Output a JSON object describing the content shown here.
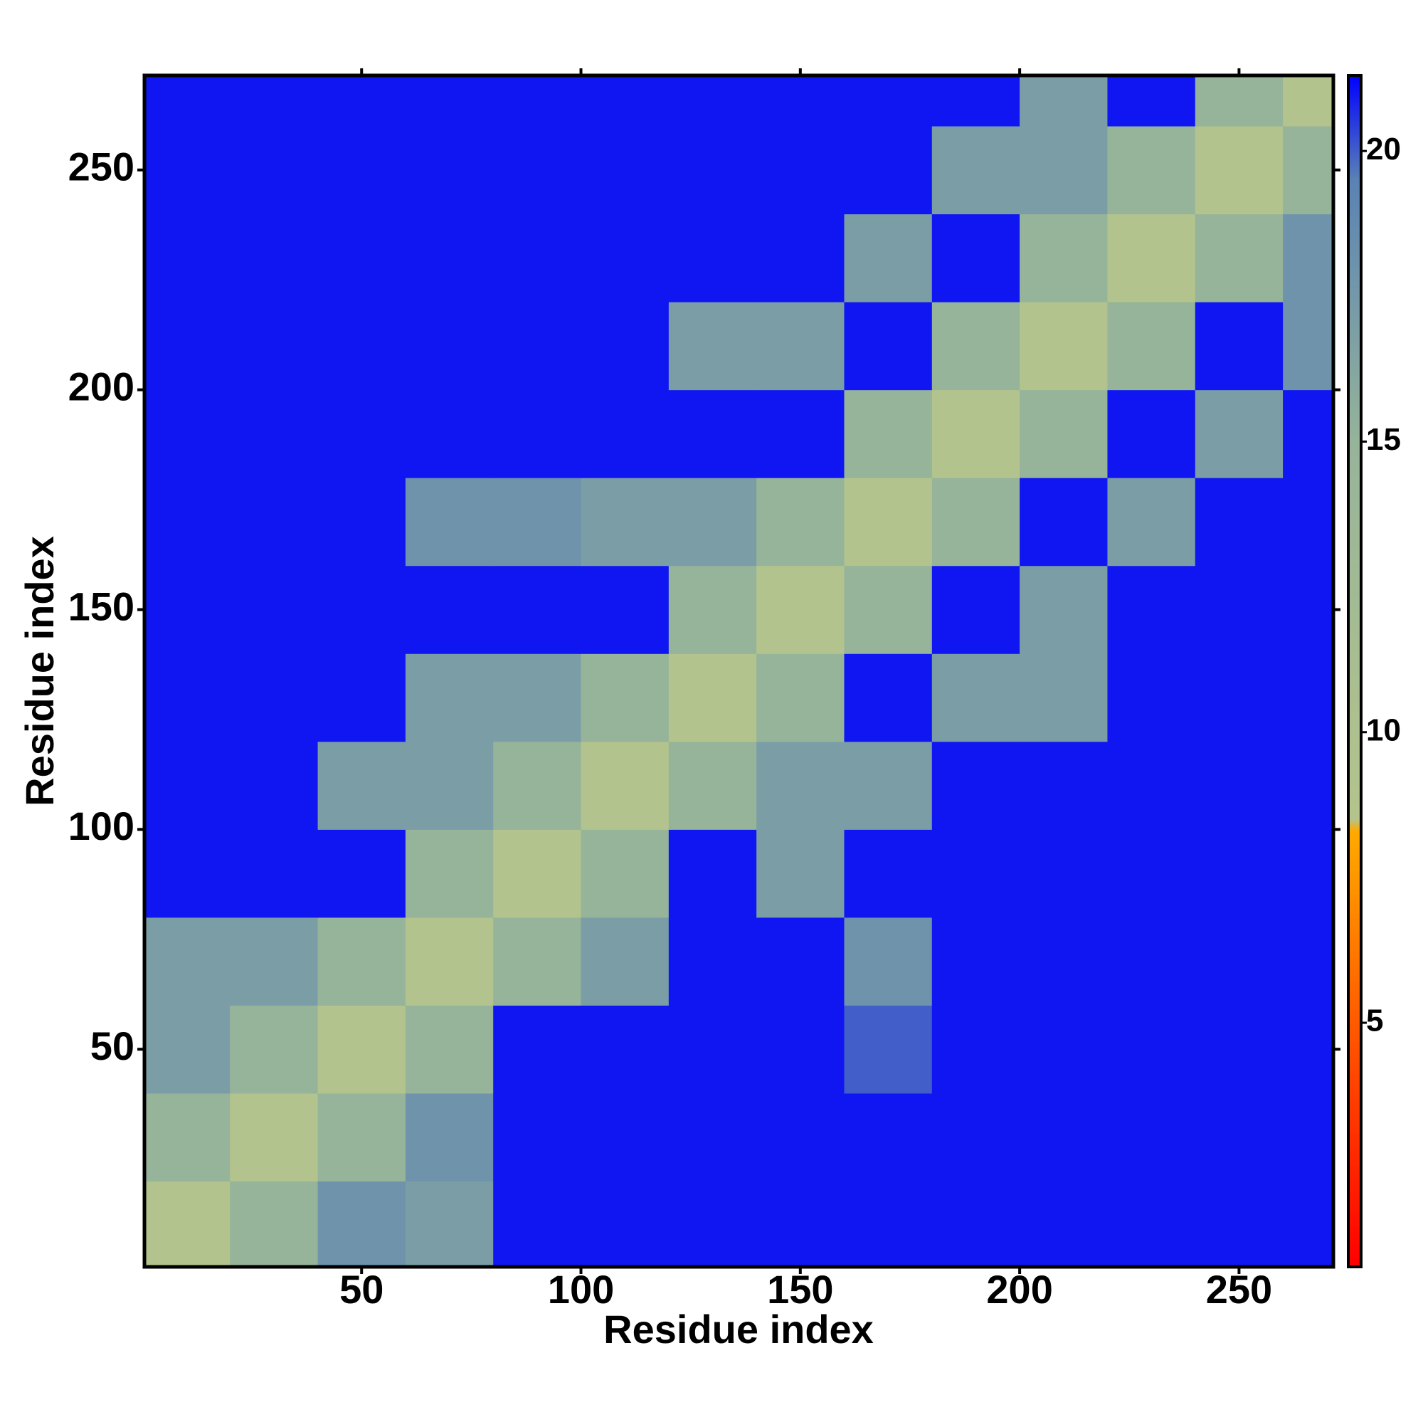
{
  "chart_data": {
    "type": "heatmap",
    "x_label": "Residue index",
    "y_label": "Residue index",
    "x": [
      10,
      30,
      50,
      70,
      90,
      110,
      130,
      150,
      170,
      190,
      210,
      230,
      250,
      270
    ],
    "y": [
      10,
      30,
      50,
      70,
      90,
      110,
      130,
      150,
      170,
      190,
      210,
      230,
      250,
      270
    ],
    "z": [
      [
        9,
        15,
        18,
        17,
        21,
        21,
        21,
        21,
        21,
        21,
        21,
        21,
        21,
        21
      ],
      [
        15,
        9,
        15,
        18,
        21,
        21,
        21,
        21,
        21,
        21,
        21,
        21,
        21,
        21
      ],
      [
        17,
        15,
        9,
        15,
        21,
        21,
        21,
        21,
        20,
        21,
        21,
        21,
        21,
        21
      ],
      [
        17,
        17,
        15,
        9,
        15,
        17,
        21,
        21,
        18,
        21,
        21,
        21,
        21,
        21
      ],
      [
        21,
        21,
        21,
        15,
        9,
        15,
        21,
        17,
        21,
        21,
        21,
        21,
        21,
        21
      ],
      [
        21,
        21,
        17,
        17,
        15,
        9,
        15,
        17,
        17,
        21,
        21,
        21,
        21,
        21
      ],
      [
        21,
        21,
        21,
        17,
        17,
        15,
        9,
        15,
        21,
        17,
        17,
        21,
        21,
        21
      ],
      [
        21,
        21,
        21,
        21,
        21,
        21,
        15,
        9,
        15,
        21,
        17,
        21,
        21,
        21
      ],
      [
        21,
        21,
        21,
        18,
        18,
        17,
        17,
        15,
        9,
        15,
        21,
        17,
        21,
        21
      ],
      [
        21,
        21,
        21,
        21,
        21,
        21,
        21,
        21,
        15,
        9,
        15,
        21,
        17,
        21
      ],
      [
        21,
        21,
        21,
        21,
        21,
        21,
        17,
        17,
        21,
        15,
        9,
        15,
        21,
        18
      ],
      [
        21,
        21,
        21,
        21,
        21,
        21,
        21,
        21,
        17,
        21,
        15,
        9,
        15,
        18
      ],
      [
        21,
        21,
        21,
        21,
        21,
        21,
        21,
        21,
        21,
        17,
        17,
        15,
        9,
        15
      ],
      [
        21,
        21,
        21,
        21,
        21,
        21,
        21,
        21,
        21,
        21,
        17,
        21,
        15,
        9
      ]
    ],
    "xlim": [
      0.5,
      271.5
    ],
    "ylim": [
      0.5,
      271.5
    ],
    "xticks": [
      50,
      100,
      150,
      200,
      250
    ],
    "yticks": [
      50,
      100,
      150,
      200,
      250
    ],
    "zlim": [
      0.8,
      21.3
    ],
    "zticks": [
      5,
      10,
      15,
      20
    ],
    "colorscale": [
      [
        0.8,
        "#ff0000"
      ],
      [
        5,
        "#ff5a00"
      ],
      [
        8.3,
        "#ffaa00"
      ],
      [
        8.5,
        "#b4c48c"
      ],
      [
        15,
        "#96b49a"
      ],
      [
        19.5,
        "#5a82b4"
      ],
      [
        21.3,
        "#0000ff"
      ]
    ]
  }
}
